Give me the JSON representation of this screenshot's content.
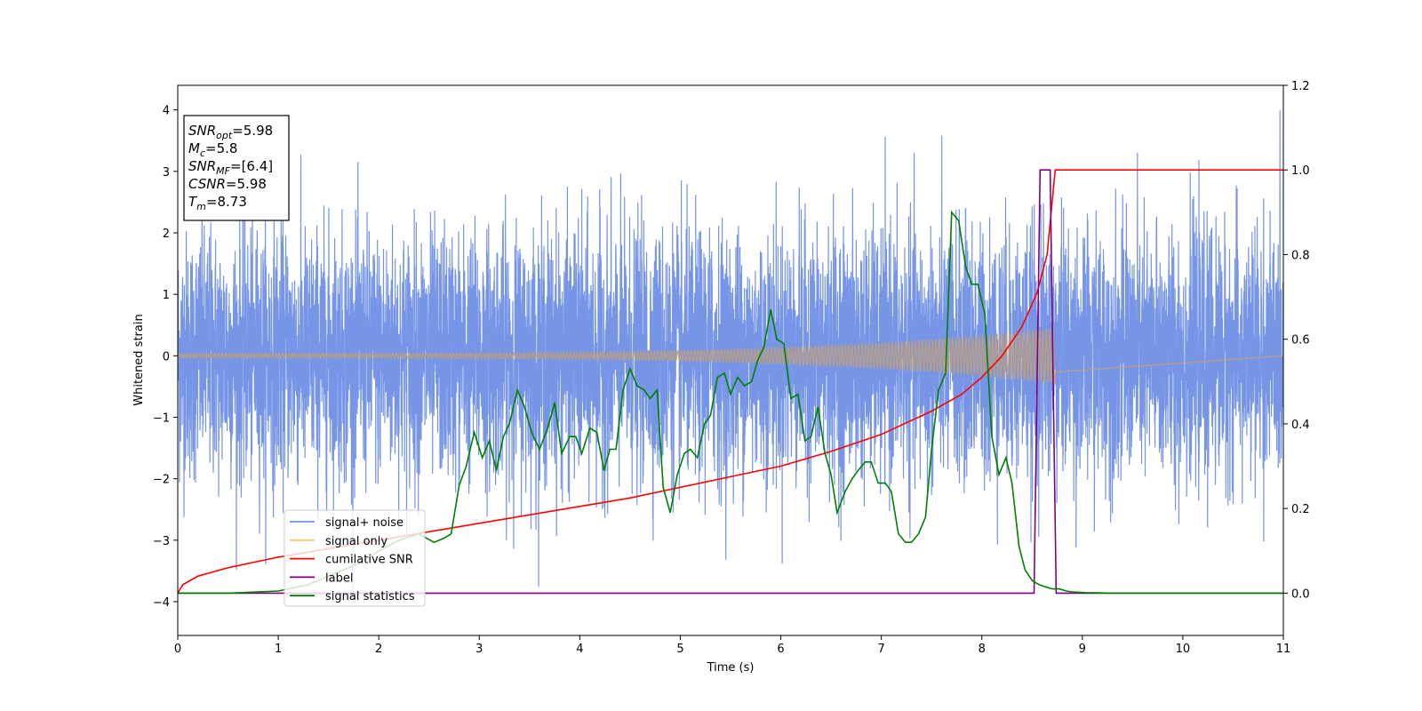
{
  "chart_data": {
    "type": "line",
    "xlabel": "Time (s)",
    "ylabel": "Whitened strain",
    "xlim": [
      0,
      11
    ],
    "ylim": [
      -4.55,
      4.4
    ],
    "y2lim": [
      -0.1,
      1.2
    ],
    "xticks": [
      "0",
      "1",
      "2",
      "3",
      "4",
      "5",
      "6",
      "7",
      "8",
      "9",
      "10",
      "11"
    ],
    "yticks": [
      "4",
      "3",
      "2",
      "1",
      "0",
      "−1",
      "−2",
      "−3",
      "−4"
    ],
    "y2ticks": [
      "1.2",
      "1.0",
      "0.8",
      "0.6",
      "0.4",
      "0.2",
      "0.0"
    ],
    "annotation": {
      "lines": [
        {
          "main": "SNR",
          "sub": "opt",
          "rest": "=5.98"
        },
        {
          "main": "M",
          "sub": "c",
          "rest": "=5.8"
        },
        {
          "main": "SNR",
          "sub": "MF",
          "rest": "=[6.4]"
        },
        {
          "main": "CSNR",
          "sub": "",
          "rest": "=5.98"
        },
        {
          "main": "T",
          "sub": "m",
          "rest": "=8.73"
        }
      ]
    },
    "legend": {
      "placement": "lower left",
      "entries": [
        {
          "label": "signal+ noise",
          "color": "#6f8fe6"
        },
        {
          "label": "signal only",
          "color": "#f5c87a"
        },
        {
          "label": "cumilative SNR",
          "color": "#ff0000"
        },
        {
          "label": "label",
          "color": "#800080"
        },
        {
          "label": "signal statistics",
          "color": "#008000"
        }
      ]
    },
    "series": [
      {
        "name": "signal+ noise",
        "axis": "left",
        "color": "#6f8fe6",
        "t_start": 0,
        "t_end": 11,
        "noise_std": 1,
        "peak_max": 3.99,
        "peak_min": -4.15
      },
      {
        "name": "signal only",
        "axis": "left",
        "color": "#c8a070",
        "t_start": 0,
        "t_end": 8.73,
        "amp_start": 0.04,
        "amp_end": 0.45
      },
      {
        "name": "cumilative SNR",
        "axis": "right",
        "x": [
          0,
          0.05,
          0.2,
          0.5,
          1,
          1.5,
          2,
          2.5,
          3,
          3.5,
          4,
          4.5,
          5,
          5.5,
          6,
          6.5,
          7,
          7.5,
          7.8,
          8,
          8.2,
          8.4,
          8.55,
          8.65,
          8.73,
          11
        ],
        "y": [
          0,
          0.02,
          0.04,
          0.06,
          0.085,
          0.105,
          0.125,
          0.145,
          0.165,
          0.185,
          0.205,
          0.225,
          0.25,
          0.275,
          0.3,
          0.335,
          0.375,
          0.43,
          0.47,
          0.51,
          0.56,
          0.63,
          0.71,
          0.8,
          1.0,
          1.0
        ]
      },
      {
        "name": "label",
        "axis": "right",
        "x": [
          0,
          8.52,
          8.58,
          8.68,
          8.74,
          11
        ],
        "y": [
          0,
          0,
          1,
          1,
          0,
          0
        ]
      },
      {
        "name": "signal statistics",
        "axis": "right",
        "x": [
          0,
          0.5,
          1.0,
          1.3,
          1.5,
          1.8,
          2.0,
          2.2,
          2.4,
          2.55,
          2.65,
          2.72,
          2.8,
          2.87,
          2.95,
          3.03,
          3.1,
          3.17,
          3.24,
          3.3,
          3.38,
          3.45,
          3.52,
          3.6,
          3.68,
          3.75,
          3.82,
          3.9,
          3.96,
          4.02,
          4.1,
          4.17,
          4.24,
          4.3,
          4.36,
          4.43,
          4.5,
          4.57,
          4.64,
          4.7,
          4.77,
          4.83,
          4.9,
          4.97,
          5.04,
          5.1,
          5.17,
          5.24,
          5.3,
          5.37,
          5.44,
          5.5,
          5.57,
          5.64,
          5.71,
          5.77,
          5.83,
          5.9,
          5.96,
          6.03,
          6.1,
          6.17,
          6.24,
          6.3,
          6.37,
          6.44,
          6.5,
          6.56,
          6.64,
          6.71,
          6.77,
          6.84,
          6.9,
          6.97,
          7.04,
          7.1,
          7.17,
          7.24,
          7.3,
          7.37,
          7.44,
          7.5,
          7.57,
          7.64,
          7.7,
          7.77,
          7.84,
          7.9,
          7.96,
          8.03,
          8.1,
          8.17,
          8.24,
          8.3,
          8.37,
          8.43,
          8.5,
          8.57,
          8.63,
          8.7,
          8.77,
          8.84,
          8.9,
          8.97,
          9.04,
          9.1,
          9.3,
          9.6,
          10.0,
          11.0
        ],
        "y": [
          0,
          0,
          0.005,
          0.02,
          0.04,
          0.07,
          0.1,
          0.125,
          0.14,
          0.12,
          0.13,
          0.14,
          0.255,
          0.3,
          0.38,
          0.32,
          0.36,
          0.29,
          0.37,
          0.4,
          0.48,
          0.44,
          0.38,
          0.34,
          0.39,
          0.45,
          0.33,
          0.37,
          0.37,
          0.33,
          0.39,
          0.38,
          0.29,
          0.34,
          0.34,
          0.48,
          0.53,
          0.49,
          0.48,
          0.46,
          0.48,
          0.25,
          0.19,
          0.28,
          0.33,
          0.34,
          0.32,
          0.4,
          0.42,
          0.51,
          0.52,
          0.47,
          0.51,
          0.49,
          0.5,
          0.55,
          0.58,
          0.67,
          0.6,
          0.59,
          0.46,
          0.47,
          0.36,
          0.37,
          0.44,
          0.33,
          0.28,
          0.19,
          0.24,
          0.27,
          0.29,
          0.31,
          0.31,
          0.26,
          0.26,
          0.24,
          0.14,
          0.12,
          0.12,
          0.14,
          0.18,
          0.34,
          0.48,
          0.52,
          0.9,
          0.88,
          0.77,
          0.73,
          0.73,
          0.66,
          0.37,
          0.28,
          0.32,
          0.26,
          0.11,
          0.055,
          0.03,
          0.02,
          0.015,
          0.01,
          0.01,
          0.005,
          0.003,
          0.002,
          0.001,
          0.001,
          0,
          0,
          0,
          0
        ]
      }
    ]
  }
}
